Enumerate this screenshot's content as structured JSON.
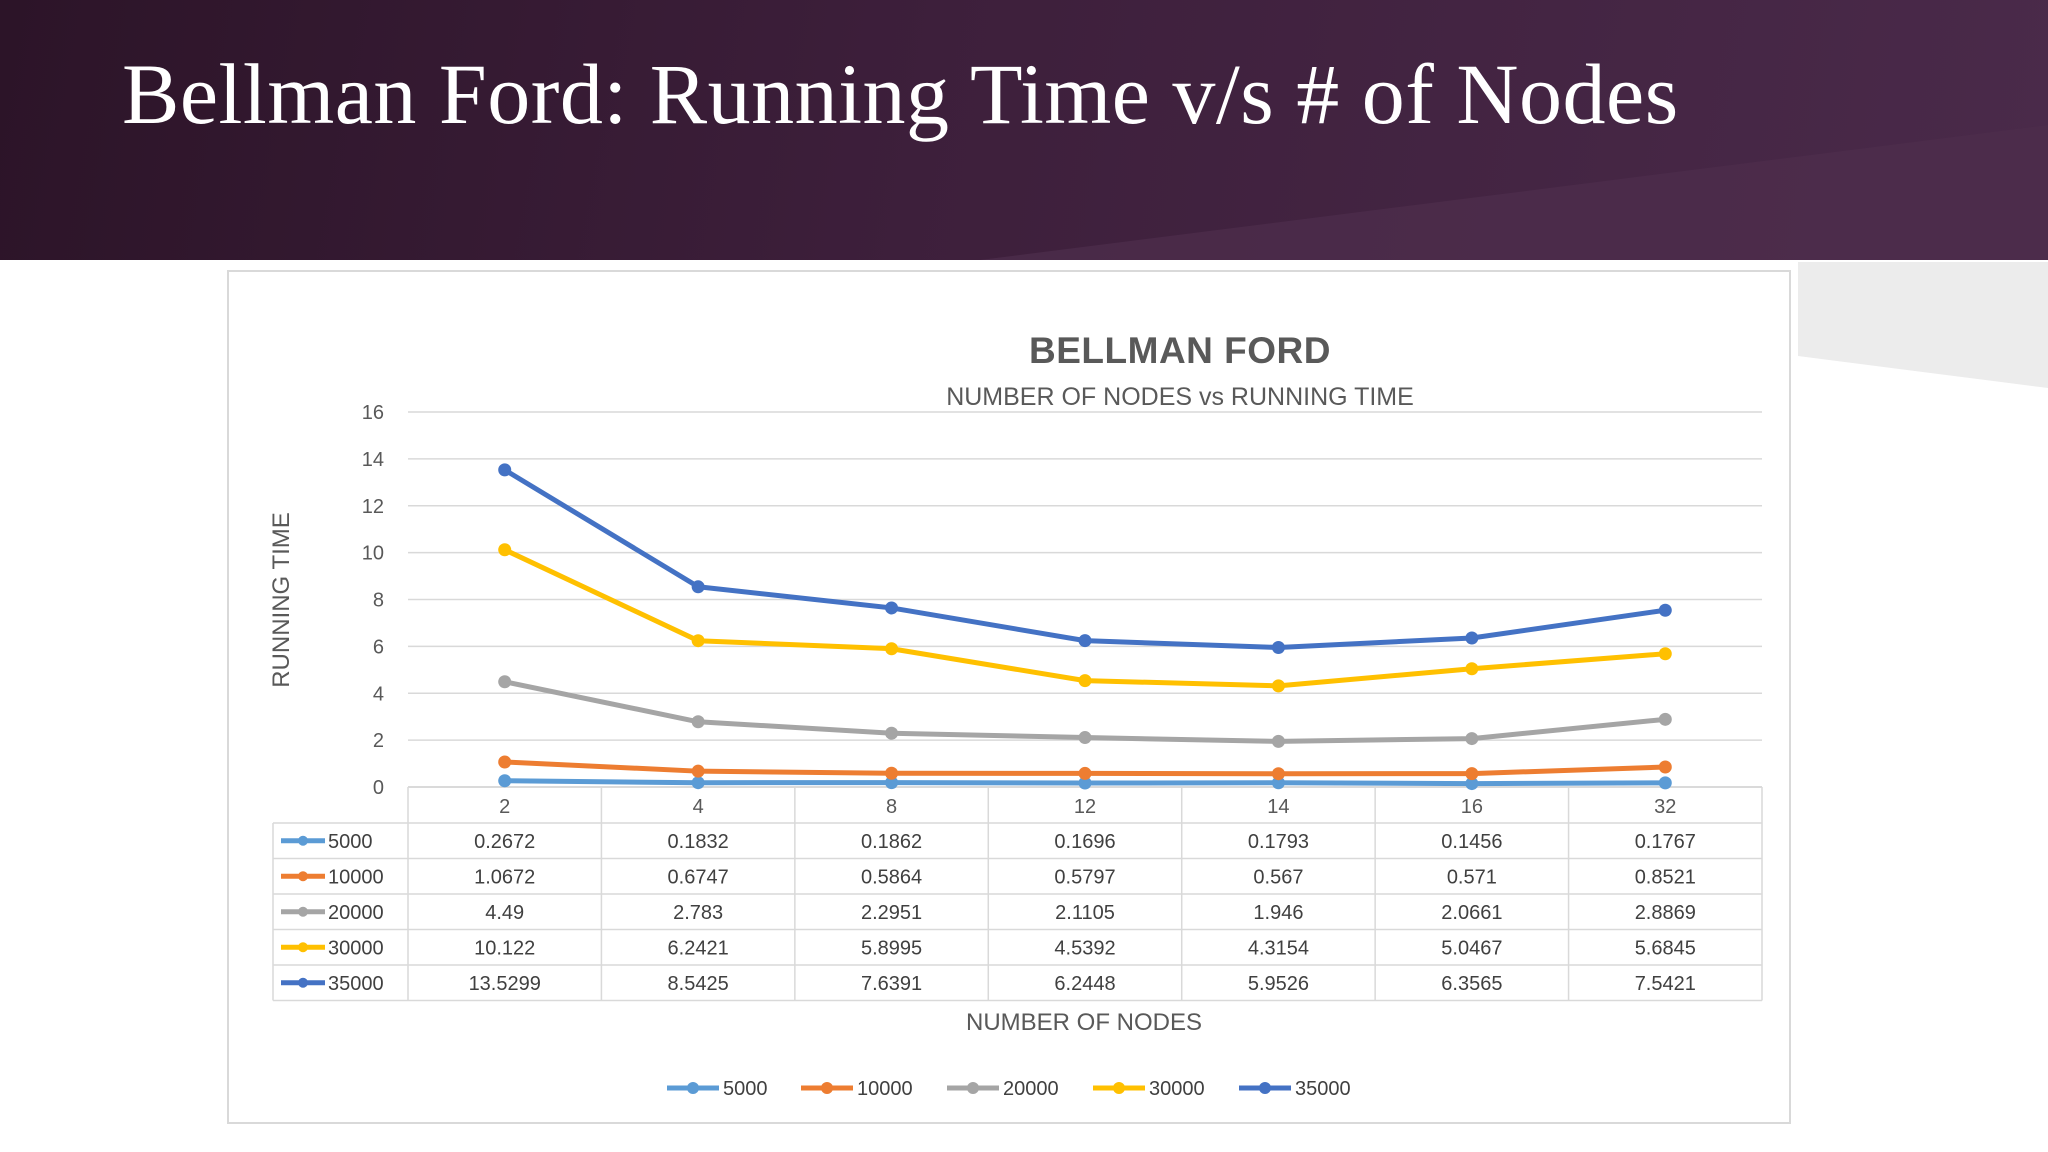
{
  "slide": {
    "title": "Bellman Ford: Running Time v/s # of Nodes"
  },
  "colors": {
    "banner": "#3d1f3b",
    "s5000": "#5b9bd5",
    "s10000": "#ed7d31",
    "s20000": "#a5a5a5",
    "s30000": "#ffc000",
    "s35000": "#4472c4"
  },
  "chart_data": {
    "type": "line",
    "title": "BELLMAN FORD",
    "subtitle": "NUMBER OF NODES vs RUNNING TIME",
    "xlabel": "NUMBER OF NODES",
    "ylabel": "RUNNING TIME",
    "ylim": [
      0,
      16
    ],
    "yticks": [
      0,
      2,
      4,
      6,
      8,
      10,
      12,
      14,
      16
    ],
    "grid": true,
    "legend": "bottom",
    "data_table": true,
    "categories": [
      "2",
      "4",
      "8",
      "12",
      "14",
      "16",
      "32"
    ],
    "series": [
      {
        "name": "5000",
        "color": "#5b9bd5",
        "values": [
          0.2672,
          0.1832,
          0.1862,
          0.1696,
          0.1793,
          0.1456,
          0.1767
        ]
      },
      {
        "name": "10000",
        "color": "#ed7d31",
        "values": [
          1.0672,
          0.6747,
          0.5864,
          0.5797,
          0.567,
          0.571,
          0.8521
        ]
      },
      {
        "name": "20000",
        "color": "#a5a5a5",
        "values": [
          4.49,
          2.783,
          2.2951,
          2.1105,
          1.946,
          2.0661,
          2.8869
        ]
      },
      {
        "name": "30000",
        "color": "#ffc000",
        "values": [
          10.122,
          6.2421,
          5.8995,
          4.5392,
          4.3154,
          5.0467,
          5.6845
        ]
      },
      {
        "name": "35000",
        "color": "#4472c4",
        "values": [
          13.5299,
          8.5425,
          7.6391,
          6.2448,
          5.9526,
          6.3565,
          7.5421
        ]
      }
    ]
  }
}
